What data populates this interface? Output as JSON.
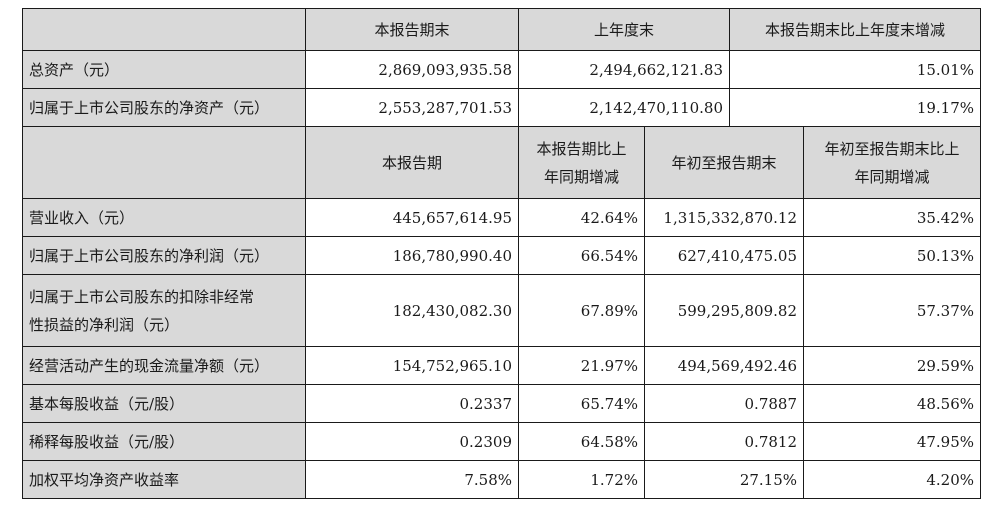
{
  "header1": {
    "col1": "本报告期末",
    "col2": "上年度末",
    "col3": "本报告期末比上年度末增减"
  },
  "balance_rows": [
    {
      "label": "总资产（元）",
      "end": "2,869,093,935.58",
      "prior": "2,494,662,121.83",
      "change": "15.01%"
    },
    {
      "label": "归属于上市公司股东的净资产（元）",
      "end": "2,553,287,701.53",
      "prior": "2,142,470,110.80",
      "change": "19.17%"
    }
  ],
  "header2": {
    "col1": "本报告期",
    "col2_line1": "本报告期比上",
    "col2_line2": "年同期增减",
    "col3": "年初至报告期末",
    "col4_line1": "年初至报告期末比上",
    "col4_line2": "年同期增减"
  },
  "income_rows": [
    {
      "label": "营业收入（元）",
      "period": "445,657,614.95",
      "yoy": "42.64%",
      "ytd": "1,315,332,870.12",
      "ytd_yoy": "35.42%"
    },
    {
      "label": "归属于上市公司股东的净利润（元）",
      "period": "186,780,990.40",
      "yoy": "66.54%",
      "ytd": "627,410,475.05",
      "ytd_yoy": "50.13%"
    },
    {
      "label_line1": "归属于上市公司股东的扣除非经常",
      "label_line2": "性损益的净利润（元）",
      "period": "182,430,082.30",
      "yoy": "67.89%",
      "ytd": "599,295,809.82",
      "ytd_yoy": "57.37%"
    },
    {
      "label": "经营活动产生的现金流量净额（元）",
      "period": "154,752,965.10",
      "yoy": "21.97%",
      "ytd": "494,569,492.46",
      "ytd_yoy": "29.59%"
    },
    {
      "label": "基本每股收益（元/股）",
      "period": "0.2337",
      "yoy": "65.74%",
      "ytd": "0.7887",
      "ytd_yoy": "48.56%"
    },
    {
      "label": "稀释每股收益（元/股）",
      "period": "0.2309",
      "yoy": "64.58%",
      "ytd": "0.7812",
      "ytd_yoy": "47.95%"
    },
    {
      "label": "加权平均净资产收益率",
      "period": "7.58%",
      "yoy": "1.72%",
      "ytd": "27.15%",
      "ytd_yoy": "4.20%"
    }
  ]
}
